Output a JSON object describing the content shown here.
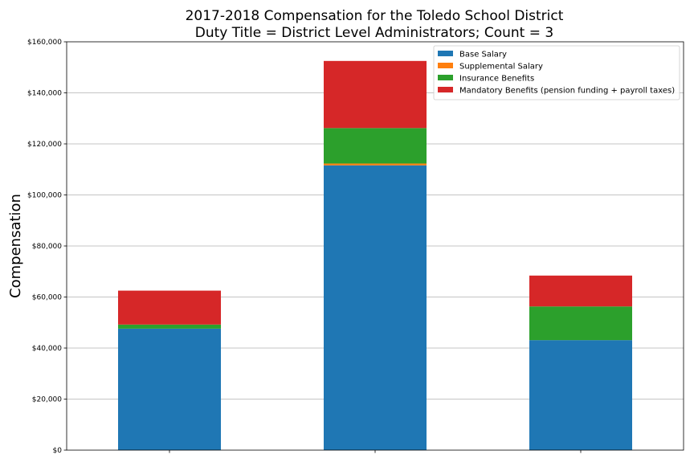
{
  "chart_data": {
    "type": "bar",
    "stacked": true,
    "title": "2017-2018 Compensation for the Toledo School District",
    "subtitle": "Duty Title = District Level Administrators; Count = 3",
    "xlabel": "",
    "ylabel": "Compensation",
    "ylim": [
      0,
      160000
    ],
    "yticks": [
      0,
      20000,
      40000,
      60000,
      80000,
      100000,
      120000,
      140000,
      160000
    ],
    "ytick_labels": [
      "$0",
      "$20,000",
      "$40,000",
      "$60,000",
      "$80,000",
      "$100,000",
      "$120,000",
      "$140,000",
      "$160,000"
    ],
    "categories": [
      "",
      "",
      ""
    ],
    "grid": "y",
    "legend_position": "top-right",
    "series": [
      {
        "name": "Base Salary",
        "color": "#1f77b4",
        "values": [
          47600,
          111600,
          43100
        ]
      },
      {
        "name": "Supplemental Salary",
        "color": "#ff7f0e",
        "values": [
          0,
          700,
          0
        ]
      },
      {
        "name": "Insurance Benefits",
        "color": "#2ca02c",
        "values": [
          1600,
          13900,
          13200
        ]
      },
      {
        "name": "Mandatory Benefits (pension funding + payroll taxes)",
        "color": "#d62728",
        "values": [
          13300,
          26300,
          12100
        ]
      }
    ]
  }
}
